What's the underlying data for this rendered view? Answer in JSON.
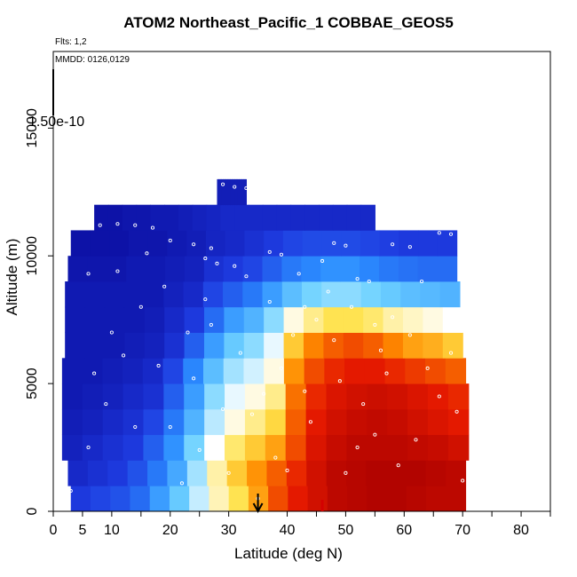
{
  "chart_data": {
    "type": "heatmap",
    "title": "ATOM2 Northeast_Pacific_1 COBBAE_GEOS5",
    "annotations": {
      "flights": "Flts: 1,2",
      "mmdd": "MMDD: 0126,0129",
      "colorbar_value": "1.50e-10"
    },
    "xlabel": "Latitude (deg N)",
    "ylabel": "Altitude (m)",
    "xlim": [
      0,
      85
    ],
    "ylim": [
      0,
      18000
    ],
    "x_ticks": [
      0,
      5,
      10,
      20,
      30,
      40,
      50,
      60,
      70,
      80
    ],
    "y_ticks": [
      0,
      5000,
      10000,
      15000
    ],
    "grid": false,
    "marker_latitude": 35,
    "ground_mark_latitude": 46,
    "colorscale": [
      "#0a0a9c",
      "#1e3be0",
      "#2b8cff",
      "#6fd2ff",
      "#ffffff",
      "#ffe24a",
      "#ff8c00",
      "#e61a00",
      "#a80000"
    ],
    "colorscale_range": [
      0,
      1
    ],
    "layers": [
      {
        "z": 500,
        "lat": [
          3,
          70.5
        ],
        "values": [
          0.12,
          0.14,
          0.16,
          0.2,
          0.28,
          0.36,
          0.45,
          0.55,
          0.62,
          0.72,
          0.82,
          0.88,
          0.92,
          0.96,
          0.97,
          0.98,
          0.98,
          0.97,
          0.96,
          0.96
        ]
      },
      {
        "z": 1500,
        "lat": [
          2.5,
          70.5
        ],
        "values": [
          0.08,
          0.1,
          0.12,
          0.16,
          0.22,
          0.3,
          0.42,
          0.56,
          0.66,
          0.74,
          0.8,
          0.86,
          0.92,
          0.96,
          0.97,
          0.98,
          0.98,
          0.98,
          0.97,
          0.96
        ]
      },
      {
        "z": 2500,
        "lat": [
          1.5,
          71
        ],
        "values": [
          0.06,
          0.08,
          0.1,
          0.12,
          0.18,
          0.26,
          0.38,
          0.5,
          0.6,
          0.66,
          0.72,
          0.82,
          0.9,
          0.94,
          0.96,
          0.96,
          0.96,
          0.95,
          0.94,
          0.92
        ]
      },
      {
        "z": 3500,
        "lat": [
          1.5,
          71
        ],
        "values": [
          0.05,
          0.06,
          0.08,
          0.1,
          0.14,
          0.22,
          0.32,
          0.44,
          0.52,
          0.58,
          0.64,
          0.8,
          0.88,
          0.92,
          0.94,
          0.95,
          0.94,
          0.92,
          0.9,
          0.88
        ]
      },
      {
        "z": 4500,
        "lat": [
          1.5,
          71
        ],
        "values": [
          0.04,
          0.05,
          0.06,
          0.08,
          0.1,
          0.18,
          0.28,
          0.4,
          0.48,
          0.52,
          0.58,
          0.78,
          0.86,
          0.9,
          0.92,
          0.93,
          0.92,
          0.9,
          0.88,
          0.86
        ]
      },
      {
        "z": 5500,
        "lat": [
          1.5,
          70.5
        ],
        "values": [
          0.04,
          0.04,
          0.05,
          0.06,
          0.08,
          0.14,
          0.24,
          0.34,
          0.42,
          0.46,
          0.52,
          0.74,
          0.82,
          0.86,
          0.88,
          0.88,
          0.86,
          0.84,
          0.82,
          0.8
        ]
      },
      {
        "z": 6500,
        "lat": [
          2,
          70
        ],
        "values": [
          0.04,
          0.04,
          0.04,
          0.05,
          0.06,
          0.1,
          0.18,
          0.28,
          0.36,
          0.4,
          0.48,
          0.66,
          0.76,
          0.8,
          0.82,
          0.8,
          0.76,
          0.72,
          0.7,
          0.66
        ]
      },
      {
        "z": 7500,
        "lat": [
          2,
          70
        ],
        "values": [
          0.04,
          0.04,
          0.04,
          0.04,
          0.05,
          0.08,
          0.12,
          0.2,
          0.28,
          0.32,
          0.4,
          0.52,
          0.58,
          0.62,
          0.62,
          0.6,
          0.56,
          0.54,
          0.52,
          0.5
        ]
      },
      {
        "z": 8500,
        "lat": [
          2,
          69.5
        ],
        "values": [
          0.04,
          0.04,
          0.04,
          0.04,
          0.04,
          0.06,
          0.08,
          0.14,
          0.18,
          0.22,
          0.28,
          0.34,
          0.38,
          0.4,
          0.4,
          0.38,
          0.36,
          0.34,
          0.33,
          0.32
        ]
      },
      {
        "z": 9500,
        "lat": [
          2.5,
          69
        ],
        "values": [
          0.03,
          0.03,
          0.03,
          0.04,
          0.04,
          0.05,
          0.06,
          0.1,
          0.12,
          0.14,
          0.18,
          0.22,
          0.24,
          0.26,
          0.26,
          0.24,
          0.22,
          0.21,
          0.2,
          0.2
        ]
      },
      {
        "z": 10500,
        "lat": [
          3,
          69
        ],
        "values": [
          0.02,
          0.02,
          0.02,
          0.03,
          0.03,
          0.04,
          0.05,
          0.07,
          0.08,
          0.1,
          0.12,
          0.14,
          0.15,
          0.15,
          0.15,
          0.14,
          0.13,
          0.12,
          0.12,
          0.12
        ]
      },
      {
        "z": 11500,
        "lat": [
          7,
          55
        ],
        "values": [
          0.02,
          0.02,
          0.03,
          0.03,
          0.04,
          0.04,
          0.05,
          0.06,
          0.07,
          0.08,
          0.08,
          0.08,
          0.08,
          0.08,
          0.08,
          0.08,
          0.08,
          0.08,
          0.08,
          0.08
        ]
      },
      {
        "z": 12500,
        "lat": [
          28,
          33
        ],
        "values": [
          0.05,
          0.05,
          0.05,
          0.05,
          0.05,
          0.05,
          0.05,
          0.05,
          0.05,
          0.05,
          0.05,
          0.05,
          0.05,
          0.05,
          0.05,
          0.05,
          0.05,
          0.05,
          0.05,
          0.05
        ]
      }
    ],
    "flight_points": [
      [
        5,
        11300
      ],
      [
        8,
        11200
      ],
      [
        11,
        11250
      ],
      [
        14,
        11200
      ],
      [
        17,
        11100
      ],
      [
        20,
        10600
      ],
      [
        24,
        10450
      ],
      [
        27,
        10300
      ],
      [
        29,
        12800
      ],
      [
        31,
        12700
      ],
      [
        33,
        12650
      ],
      [
        17,
        12400
      ],
      [
        20,
        12300
      ],
      [
        12,
        12100
      ],
      [
        26,
        9900
      ],
      [
        28,
        9700
      ],
      [
        31,
        9600
      ],
      [
        37,
        10150
      ],
      [
        39,
        10050
      ],
      [
        48,
        10500
      ],
      [
        50,
        10400
      ],
      [
        58,
        10450
      ],
      [
        61,
        10350
      ],
      [
        66,
        10900
      ],
      [
        68,
        10850
      ],
      [
        52,
        9100
      ],
      [
        54,
        9000
      ],
      [
        43,
        8000
      ],
      [
        45,
        7500
      ],
      [
        55,
        7300
      ],
      [
        59,
        1800
      ],
      [
        3,
        800
      ],
      [
        6,
        2500
      ],
      [
        9,
        4200
      ],
      [
        12,
        6100
      ],
      [
        15,
        8000
      ],
      [
        20,
        3300
      ],
      [
        24,
        5200
      ],
      [
        27,
        7300
      ],
      [
        33,
        9200
      ],
      [
        36,
        4600
      ],
      [
        38,
        2100
      ],
      [
        41,
        6900
      ],
      [
        44,
        3500
      ],
      [
        47,
        8600
      ],
      [
        50,
        1500
      ],
      [
        53,
        4200
      ],
      [
        56,
        6300
      ],
      [
        62,
        2800
      ],
      [
        64,
        5600
      ],
      [
        67,
        7800
      ],
      [
        69,
        3900
      ],
      [
        70,
        1200
      ],
      [
        35,
        500
      ],
      [
        46,
        9800
      ],
      [
        6,
        9300
      ],
      [
        10,
        7000
      ],
      [
        14,
        3300
      ],
      [
        18,
        5700
      ],
      [
        22,
        1100
      ],
      [
        26,
        8300
      ],
      [
        29,
        4000
      ],
      [
        32,
        6200
      ],
      [
        40,
        1600
      ],
      [
        42,
        9300
      ],
      [
        49,
        5100
      ],
      [
        52,
        2500
      ],
      [
        58,
        7600
      ],
      [
        63,
        9000
      ],
      [
        66,
        4500
      ],
      [
        68,
        6200
      ],
      [
        7,
        5400
      ],
      [
        11,
        9400
      ],
      [
        16,
        10100
      ],
      [
        19,
        8800
      ],
      [
        23,
        7000
      ],
      [
        25,
        2400
      ],
      [
        30,
        1500
      ],
      [
        34,
        3800
      ],
      [
        37,
        8200
      ],
      [
        39,
        5600
      ],
      [
        43,
        4700
      ],
      [
        48,
        6700
      ],
      [
        51,
        8000
      ],
      [
        55,
        3000
      ],
      [
        57,
        5400
      ],
      [
        61,
        6900
      ]
    ]
  }
}
